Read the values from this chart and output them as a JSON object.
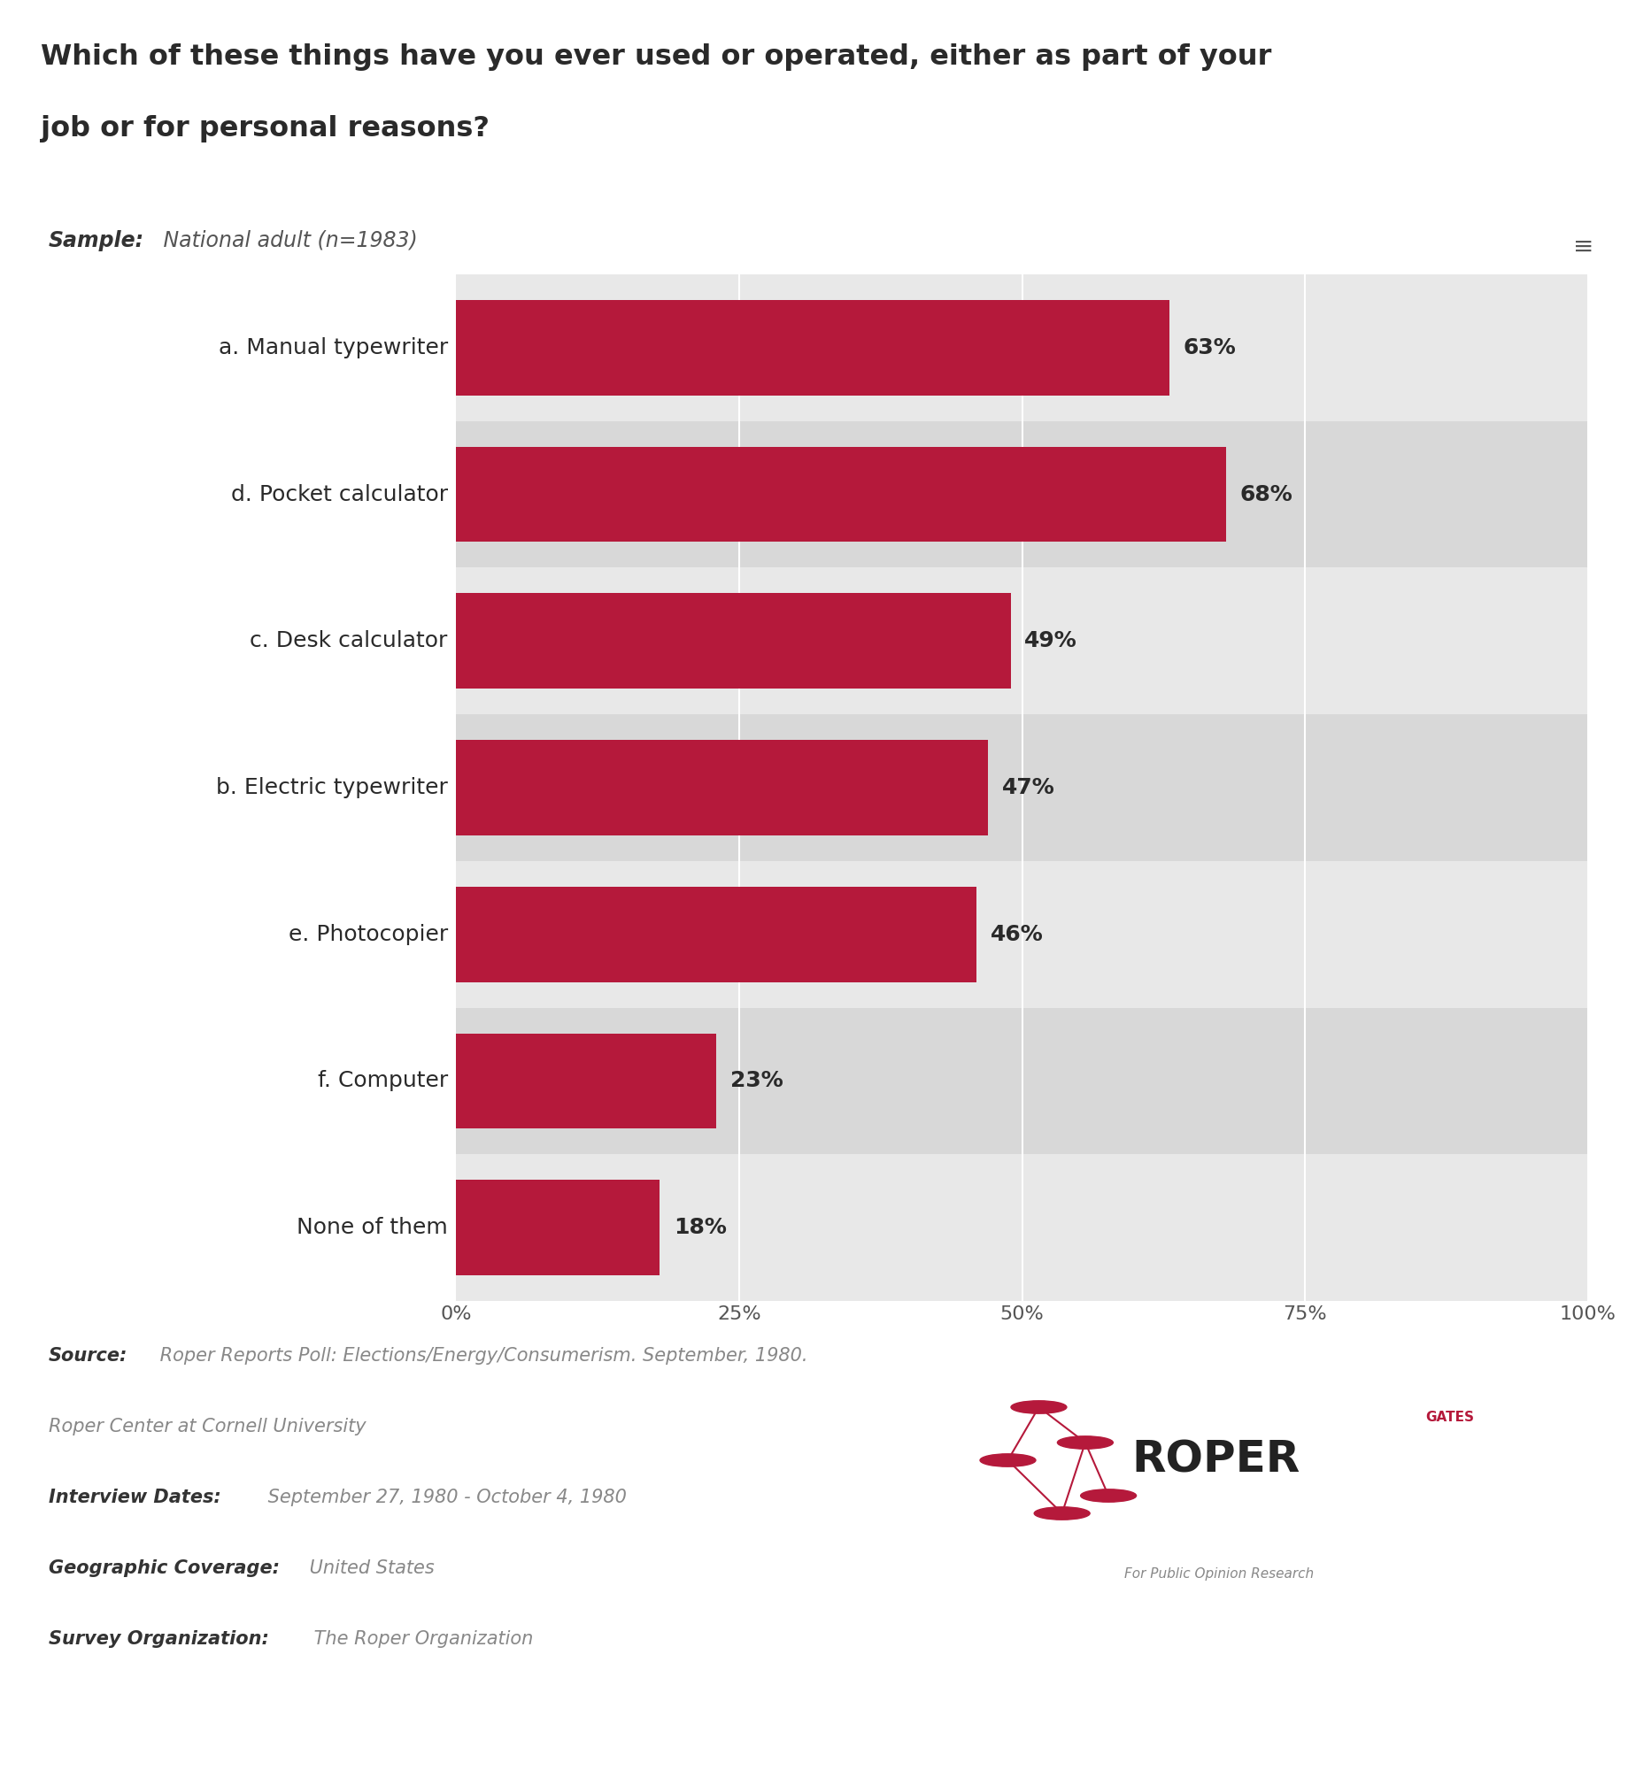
{
  "title_line1": "Which of these things have you ever used or operated, either as part of your",
  "title_line2": "job or for personal reasons?",
  "sample_bold": "Sample:",
  "sample_rest": " National adult (n=1983)",
  "categories": [
    "a. Manual typewriter",
    "d. Pocket calculator",
    "c. Desk calculator",
    "b. Electric typewriter",
    "e. Photocopier",
    "f. Computer",
    "None of them"
  ],
  "values": [
    63,
    68,
    49,
    47,
    46,
    23,
    18
  ],
  "bar_color": "#b5193b",
  "row_colors": [
    "#e8e8e8",
    "#d8d8d8"
  ],
  "white_line_color": "#ffffff",
  "text_color": "#2a2a2a",
  "label_value_color": "#2a2a2a",
  "gray_divider_color": "#888888",
  "page_bg": "#ffffff",
  "chart_bg": "#e0e0e0",
  "xlim": [
    0,
    100
  ],
  "xticks": [
    0,
    25,
    50,
    75,
    100
  ],
  "xtick_labels": [
    "0%",
    "25%",
    "50%",
    "75%",
    "100%"
  ],
  "source_bold": "Source:",
  "source_rest": " Roper Reports Poll: Elections/Energy/Consumerism. September, 1980.",
  "source_line2": "Roper Center at Cornell University",
  "interview_bold": "Interview Dates:",
  "interview_rest": " September 27, 1980 - October 4, 1980",
  "geo_bold": "Geographic Coverage:",
  "geo_rest": " United States",
  "survey_bold": "Survey Organization:",
  "survey_rest": " The Roper Organization",
  "footer_text_color": "#888888",
  "footer_bold_color": "#333333"
}
